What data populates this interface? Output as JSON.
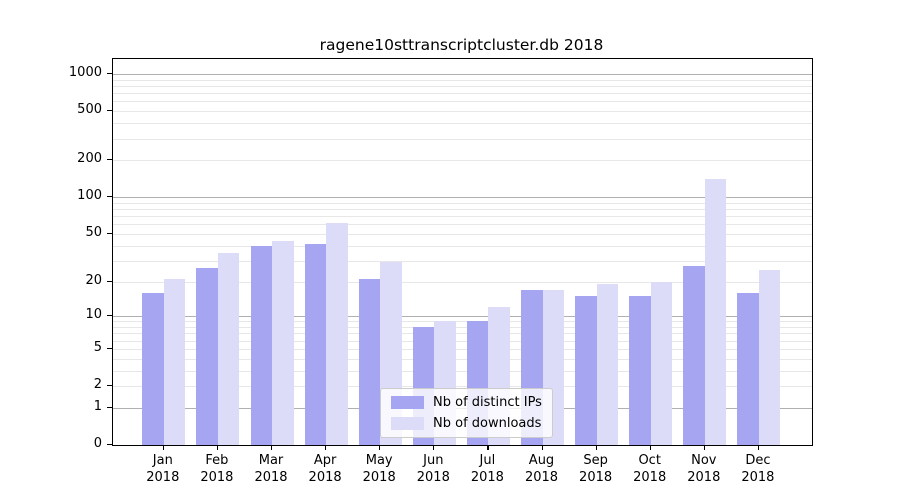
{
  "title": "ragene10sttranscriptcluster.db 2018",
  "chart_data": {
    "type": "bar",
    "title": "ragene10sttranscriptcluster.db 2018",
    "y_scale": "log10(1+x)",
    "grid": true,
    "legend_position": "lower center",
    "categories": [
      "Jan",
      "Feb",
      "Mar",
      "Apr",
      "May",
      "Jun",
      "Jul",
      "Aug",
      "Sep",
      "Oct",
      "Nov",
      "Dec"
    ],
    "year_label": "2018",
    "series": [
      {
        "name": "Nb of distinct IPs",
        "color": "#a5a5f1",
        "values": [
          16,
          26,
          40,
          41,
          21,
          8,
          9,
          17,
          15,
          15,
          27,
          16
        ]
      },
      {
        "name": "Nb of downloads",
        "color": "#dcdcf9",
        "values": [
          21,
          35,
          44,
          62,
          29,
          9,
          12,
          17,
          19,
          20,
          140,
          25
        ]
      }
    ],
    "yticks": [
      0,
      1,
      2,
      5,
      10,
      20,
      50,
      100,
      200,
      500,
      1000
    ],
    "major_gridlines": [
      1,
      10,
      100,
      1000
    ],
    "minor_gridlines": [
      2,
      3,
      4,
      5,
      6,
      7,
      8,
      9,
      20,
      30,
      40,
      50,
      60,
      70,
      80,
      90,
      200,
      300,
      400,
      500,
      600,
      700,
      800,
      900
    ],
    "ylim": [
      0,
      1324
    ],
    "colors": {
      "major_grid": "#b0b0b0",
      "minor_grid": "#e7e7e7",
      "spine": "#000000"
    }
  }
}
